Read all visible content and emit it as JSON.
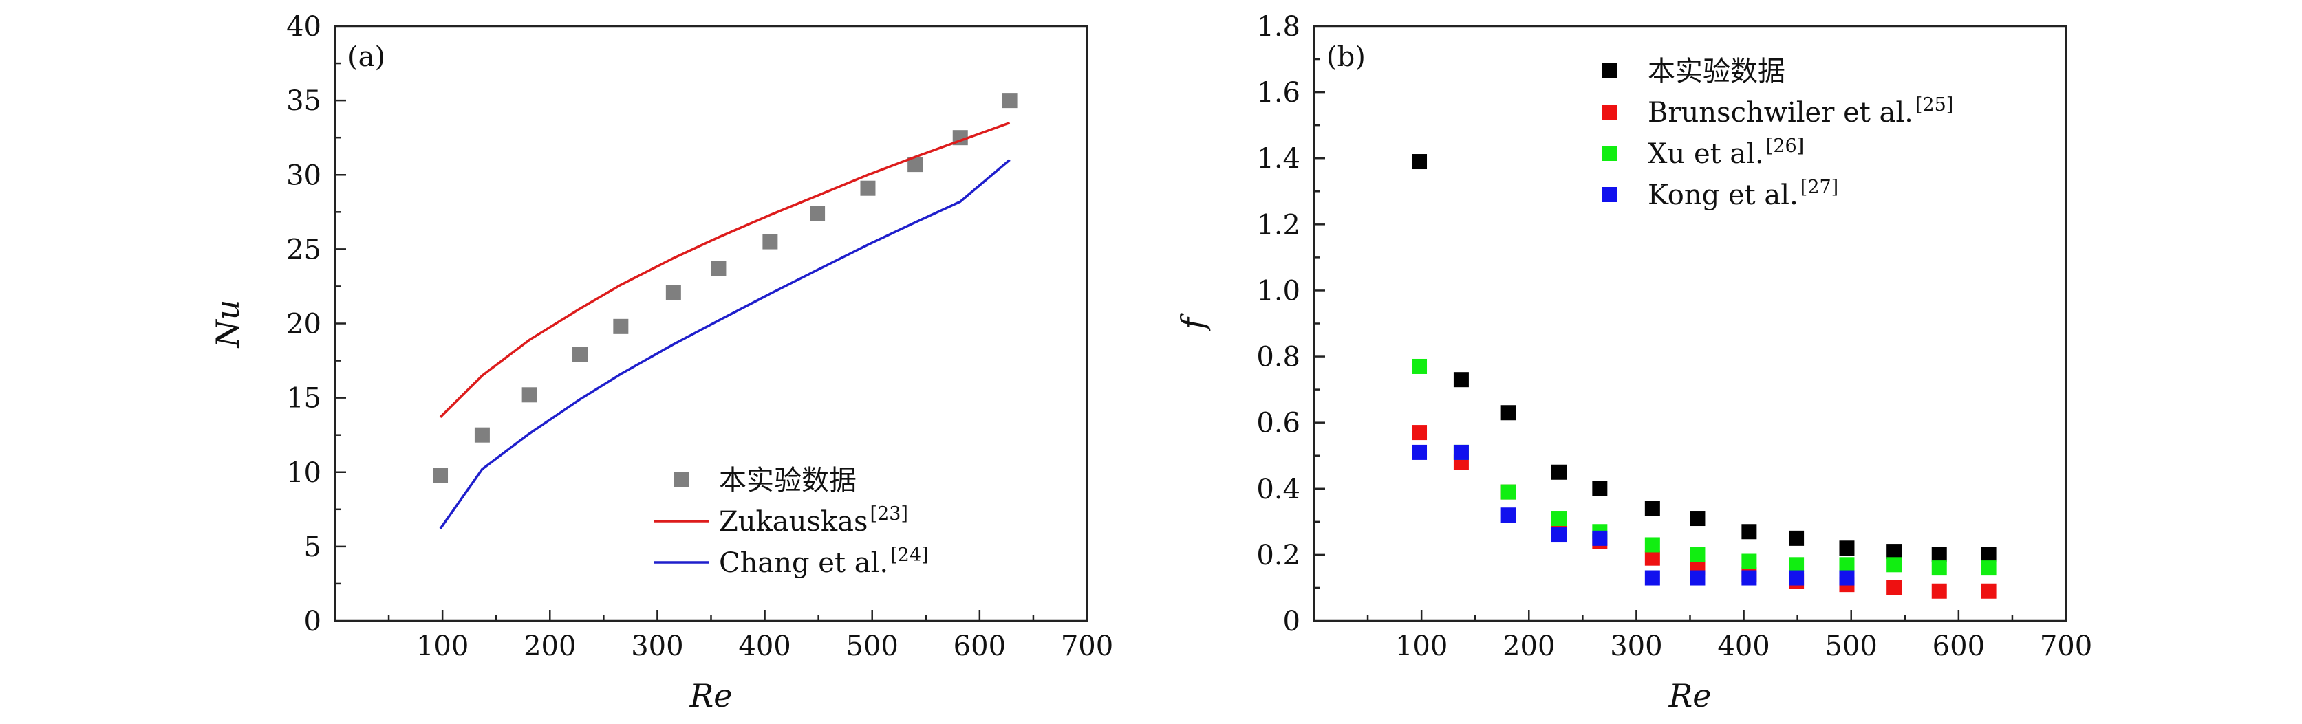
{
  "chart_data": [
    {
      "type": "scatter+line",
      "panel_label": "(a)",
      "xlabel": "Re",
      "ylabel": "Nu",
      "xlim": [
        0,
        700
      ],
      "ylim": [
        0,
        40
      ],
      "xticks": [
        "100",
        "200",
        "300",
        "400",
        "500",
        "600",
        "700"
      ],
      "yticks": [
        "0",
        "5",
        "10",
        "15",
        "20",
        "25",
        "30",
        "35",
        "40"
      ],
      "legend_position": "bottom-right",
      "series": [
        {
          "name": "本实验数据",
          "sup": "",
          "kind": "marker",
          "color": "#7f7f7f",
          "x": [
            98,
            137,
            181,
            228,
            266,
            315,
            357,
            405,
            449,
            496,
            540,
            582,
            628
          ],
          "y": [
            9.8,
            12.5,
            15.2,
            17.9,
            19.8,
            22.1,
            23.7,
            25.5,
            27.4,
            29.1,
            30.7,
            32.5,
            35.0
          ]
        },
        {
          "name": "Zukauskas",
          "sup": "[23]",
          "kind": "line",
          "color": "#dd1c1c",
          "x": [
            98,
            137,
            181,
            228,
            266,
            315,
            357,
            405,
            449,
            496,
            540,
            582,
            628
          ],
          "y": [
            13.7,
            16.5,
            18.9,
            21.0,
            22.6,
            24.4,
            25.8,
            27.3,
            28.6,
            30.0,
            31.2,
            32.3,
            33.5
          ]
        },
        {
          "name": "Chang et al.",
          "sup": "[24]",
          "kind": "line",
          "color": "#1f1fcc",
          "x": [
            98,
            137,
            181,
            228,
            266,
            315,
            357,
            405,
            449,
            496,
            540,
            582,
            628
          ],
          "y": [
            6.2,
            10.2,
            12.6,
            14.9,
            16.6,
            18.6,
            20.2,
            22.0,
            23.6,
            25.3,
            26.8,
            28.2,
            31.0
          ]
        }
      ]
    },
    {
      "type": "scatter",
      "panel_label": "(b)",
      "xlabel": "Re",
      "ylabel": "f",
      "xlim": [
        0,
        700
      ],
      "ylim": [
        0,
        1.8
      ],
      "xticks": [
        "100",
        "200",
        "300",
        "400",
        "500",
        "600",
        "700"
      ],
      "yticks": [
        "0",
        "0.2",
        "0.4",
        "0.6",
        "0.8",
        "1.0",
        "1.2",
        "1.4",
        "1.6",
        "1.8"
      ],
      "legend_position": "top-right",
      "series": [
        {
          "name": "本实验数据",
          "sup": "",
          "kind": "marker",
          "color": "#000000",
          "x": [
            98,
            137,
            181,
            228,
            266,
            315,
            357,
            405,
            449,
            496,
            540,
            582,
            628
          ],
          "y": [
            1.39,
            0.73,
            0.63,
            0.45,
            0.4,
            0.34,
            0.31,
            0.27,
            0.25,
            0.22,
            0.21,
            0.2,
            0.2
          ]
        },
        {
          "name": "Brunschwiler et al.",
          "sup": "[25]",
          "kind": "marker",
          "color": "#ee1111",
          "x": [
            98,
            137,
            181,
            228,
            266,
            315,
            357,
            405,
            449,
            496,
            540,
            582,
            628
          ],
          "y": [
            0.57,
            0.48,
            0.39,
            0.3,
            0.24,
            0.19,
            0.16,
            0.14,
            0.12,
            0.11,
            0.1,
            0.09,
            0.09
          ]
        },
        {
          "name": "Xu et al.",
          "sup": "[26]",
          "kind": "marker",
          "color": "#11ee11",
          "x": [
            98,
            137,
            181,
            228,
            266,
            315,
            357,
            405,
            449,
            496,
            540,
            582,
            628
          ],
          "y": [
            0.77,
            0.51,
            0.39,
            0.31,
            0.27,
            0.23,
            0.2,
            0.18,
            0.17,
            0.17,
            0.17,
            0.16,
            0.16
          ]
        },
        {
          "name": "Kong et al.",
          "sup": "[27]",
          "kind": "marker",
          "color": "#1111ee",
          "x": [
            98,
            137,
            181,
            228,
            266,
            315,
            357,
            405,
            449,
            496
          ],
          "y": [
            0.51,
            0.51,
            0.32,
            0.26,
            0.25,
            0.13,
            0.13,
            0.13,
            0.13,
            0.13
          ]
        }
      ]
    }
  ]
}
